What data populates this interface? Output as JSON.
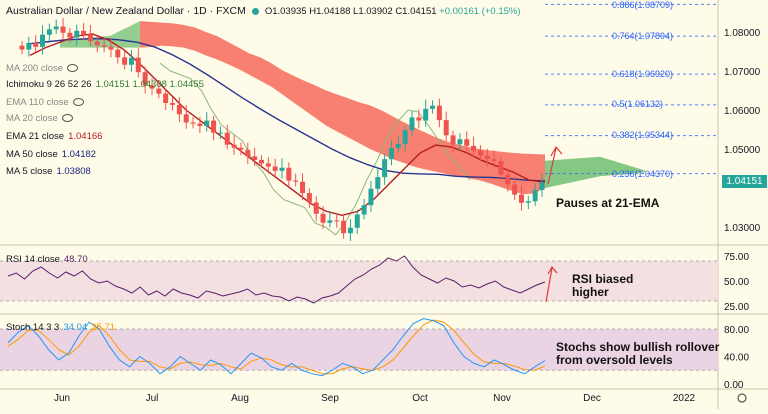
{
  "header": {
    "symbol": "Australian Dollar / New Zealand Dollar · 1D · FXCM",
    "open": "O1.03935",
    "high": "H1.04188",
    "low": "L1.03902",
    "close": "C1.04151",
    "change": "+0.00161 (+0.15%)"
  },
  "legend": [
    {
      "label": "MA 200 close",
      "value": "",
      "color": "#888888"
    },
    {
      "label": "Ichimoku 9 26 52 26",
      "value": "1.04151 1.04308 1.04455",
      "color": "#131722"
    },
    {
      "label": "EMA 110 close",
      "value": "",
      "color": "#888888"
    },
    {
      "label": "MA 20 close",
      "value": "",
      "color": "#888888"
    },
    {
      "label": "EMA 21 close",
      "value": "1.04166",
      "color": "#b71c1c"
    },
    {
      "label": "MA 50 close",
      "value": "1.04182",
      "color": "#1a237e"
    },
    {
      "label": "MA 5 close",
      "value": "1.03808",
      "color": "#1a237e"
    }
  ],
  "colors": {
    "up": "#26a69a",
    "down": "#ef5350",
    "ema21": "#b71c1c",
    "ma50": "#283593",
    "lagging": "#8bb87a",
    "cloud_bear": "#f76a5b",
    "cloud_bull": "#66bb6a",
    "fib": "#2962ff",
    "rsi": "#5c1f6b",
    "stoch_k": "#2196f3",
    "stoch_d": "#ff9800"
  },
  "price_axis": [
    "1.08000",
    "1.07000",
    "1.06000",
    "1.05000",
    "1.03000"
  ],
  "current_price": "1.04151",
  "fib_levels": [
    {
      "label": "0.886(1.08709)",
      "price": 1.08709
    },
    {
      "label": "0.764(1.07894)",
      "price": 1.07894
    },
    {
      "label": "0.618(1.06920)",
      "price": 1.0692
    },
    {
      "label": "0.5(1.06132)",
      "price": 1.06132
    },
    {
      "label": "0.382(1.05344)",
      "price": 1.05344
    },
    {
      "label": "0.236(1.04370)",
      "price": 1.0437
    }
  ],
  "notes": {
    "ema": "Pauses at 21-EMA",
    "rsi": "RSI biased\nhigher",
    "stoch": "Stochs show bullish rollover\nfrom oversold levels"
  },
  "rsi": {
    "label": "RSI 14 close",
    "value": "48.70",
    "axis": [
      "75.00",
      "50.00",
      "25.00"
    ]
  },
  "stoch": {
    "label": "Stoch 14 3 3",
    "k": "34.04",
    "d": "25.71",
    "axis": [
      "80.00",
      "40.00",
      "0.00"
    ]
  },
  "time_axis": [
    "Jun",
    "Jul",
    "Aug",
    "Sep",
    "Oct",
    "Nov",
    "Dec",
    "2022"
  ],
  "chart_data": {
    "type": "candlestick",
    "price_closes": [
      1.0755,
      1.0772,
      1.0762,
      1.0793,
      1.0807,
      1.0814,
      1.0798,
      1.0786,
      1.0803,
      1.0794,
      1.0776,
      1.0766,
      1.0762,
      1.0755,
      1.0735,
      1.0716,
      1.0734,
      1.0697,
      1.0663,
      1.0655,
      1.0642,
      1.0618,
      1.0613,
      1.0589,
      1.0568,
      1.0565,
      1.0559,
      1.0573,
      1.0542,
      1.0542,
      1.0511,
      1.0503,
      1.0498,
      1.0481,
      1.0472,
      1.0463,
      1.0455,
      1.0444,
      1.0452,
      1.0419,
      1.0416,
      1.0387,
      1.0363,
      1.0334,
      1.0311,
      1.0317,
      1.0316,
      1.0284,
      1.0298,
      1.0332,
      1.0356,
      1.0398,
      1.0428,
      1.0474,
      1.0503,
      1.0513,
      1.0548,
      1.0581,
      1.0573,
      1.0603,
      1.0611,
      1.0574,
      1.0535,
      1.0512,
      1.0525,
      1.0508,
      1.0496,
      1.0483,
      1.0474,
      1.0469,
      1.0434,
      1.0409,
      1.0383,
      1.0362,
      1.0366,
      1.0395,
      1.0415
    ]
  }
}
